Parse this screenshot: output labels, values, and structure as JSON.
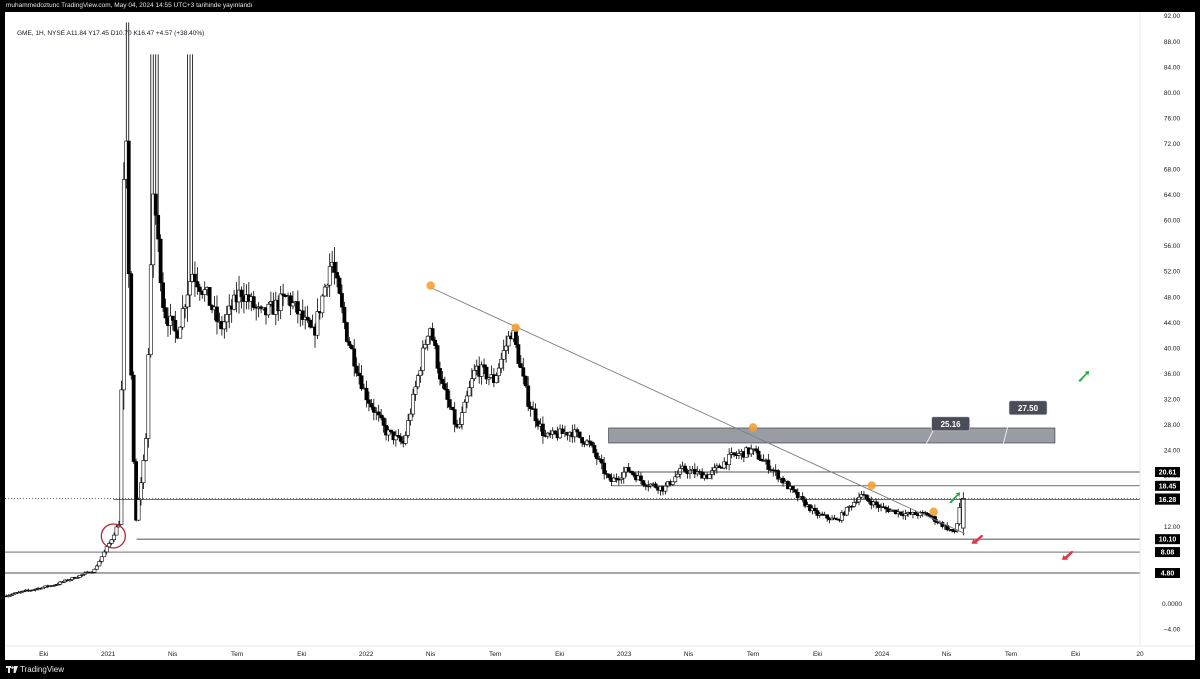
{
  "header": {
    "publisher_line": "muhammedoztunc TradingView.com, May 04, 2024 14:55 UTC+3 tarihinde yayınlandı"
  },
  "legend": {
    "text": "GME, 1H, NYSE  A11.84  Y17.45  D10.70  K16.47  +4.57 (+38.40%)"
  },
  "footer": {
    "brand": "TradingView"
  },
  "colors": {
    "background": "#ffffff",
    "candle": "#000000",
    "trendline": "#787b86",
    "zone_fill": "#787b86",
    "pivot_marker": "#f6a032",
    "arrow_green": "#22ab3b",
    "arrow_red": "#e5323e",
    "circle": "#b22833",
    "tag_bg": "#000000"
  },
  "chart_data": {
    "type": "candlestick",
    "title": "",
    "symbol": "GME",
    "timeframe": "1H",
    "exchange": "NYSE",
    "ohlc": {
      "open": 11.84,
      "high": 17.45,
      "low": 10.7,
      "close": 16.47,
      "change": 4.57,
      "change_pct": 38.4
    },
    "y_axis": {
      "range": [
        -6,
        92
      ],
      "ticks": [
        "92.00",
        "88.00",
        "84.00",
        "80.00",
        "76.00",
        "72.00",
        "68.00",
        "64.00",
        "60.00",
        "56.00",
        "52.00",
        "48.00",
        "44.00",
        "40.00",
        "36.00",
        "32.00",
        "28.00",
        "24.00",
        "20.00",
        "12.00",
        "0.0000",
        "−4.00"
      ],
      "tick_values": [
        92,
        88,
        84,
        80,
        76,
        72,
        68,
        64,
        60,
        56,
        52,
        48,
        44,
        40,
        36,
        32,
        28,
        24,
        20,
        12,
        0,
        -4
      ]
    },
    "x_axis": {
      "range": [
        2020.6,
        2025.0
      ],
      "labels": [
        {
          "t": 2020.75,
          "label": "Eki"
        },
        {
          "t": 2021.0,
          "label": "2021"
        },
        {
          "t": 2021.25,
          "label": "Nis"
        },
        {
          "t": 2021.5,
          "label": "Tem"
        },
        {
          "t": 2021.75,
          "label": "Eki"
        },
        {
          "t": 2022.0,
          "label": "2022"
        },
        {
          "t": 2022.25,
          "label": "Nis"
        },
        {
          "t": 2022.5,
          "label": "Tem"
        },
        {
          "t": 2022.75,
          "label": "Eki"
        },
        {
          "t": 2023.0,
          "label": "2023"
        },
        {
          "t": 2023.25,
          "label": "Nis"
        },
        {
          "t": 2023.5,
          "label": "Tem"
        },
        {
          "t": 2023.75,
          "label": "Eki"
        },
        {
          "t": 2024.0,
          "label": "2024"
        },
        {
          "t": 2024.25,
          "label": "Nis"
        },
        {
          "t": 2024.5,
          "label": "Tem"
        },
        {
          "t": 2024.75,
          "label": "Eki"
        },
        {
          "t": 2025.0,
          "label": "20"
        }
      ]
    },
    "price_anchors": [
      {
        "t": 2020.6,
        "p": 1.2
      },
      {
        "t": 2020.8,
        "p": 3.0
      },
      {
        "t": 2020.95,
        "p": 5.2
      },
      {
        "t": 2021.01,
        "p": 9.5
      },
      {
        "t": 2021.05,
        "p": 13
      },
      {
        "t": 2021.07,
        "p": 80
      },
      {
        "t": 2021.09,
        "p": 42
      },
      {
        "t": 2021.11,
        "p": 12
      },
      {
        "t": 2021.15,
        "p": 25
      },
      {
        "t": 2021.18,
        "p": 65
      },
      {
        "t": 2021.22,
        "p": 46
      },
      {
        "t": 2021.27,
        "p": 42
      },
      {
        "t": 2021.33,
        "p": 52
      },
      {
        "t": 2021.39,
        "p": 48
      },
      {
        "t": 2021.44,
        "p": 43
      },
      {
        "t": 2021.52,
        "p": 49
      },
      {
        "t": 2021.6,
        "p": 45
      },
      {
        "t": 2021.7,
        "p": 48
      },
      {
        "t": 2021.8,
        "p": 42
      },
      {
        "t": 2021.87,
        "p": 54
      },
      {
        "t": 2021.93,
        "p": 42
      },
      {
        "t": 2022.0,
        "p": 33
      },
      {
        "t": 2022.08,
        "p": 27
      },
      {
        "t": 2022.15,
        "p": 25
      },
      {
        "t": 2022.25,
        "p": 44
      },
      {
        "t": 2022.3,
        "p": 34
      },
      {
        "t": 2022.36,
        "p": 27
      },
      {
        "t": 2022.43,
        "p": 37
      },
      {
        "t": 2022.5,
        "p": 35
      },
      {
        "t": 2022.57,
        "p": 43
      },
      {
        "t": 2022.63,
        "p": 32
      },
      {
        "t": 2022.7,
        "p": 26
      },
      {
        "t": 2022.8,
        "p": 27
      },
      {
        "t": 2022.87,
        "p": 25
      },
      {
        "t": 2022.95,
        "p": 19
      },
      {
        "t": 2023.02,
        "p": 21
      },
      {
        "t": 2023.08,
        "p": 19
      },
      {
        "t": 2023.16,
        "p": 18
      },
      {
        "t": 2023.23,
        "p": 21
      },
      {
        "t": 2023.33,
        "p": 20
      },
      {
        "t": 2023.42,
        "p": 23
      },
      {
        "t": 2023.5,
        "p": 24
      },
      {
        "t": 2023.58,
        "p": 21
      },
      {
        "t": 2023.67,
        "p": 17
      },
      {
        "t": 2023.75,
        "p": 14
      },
      {
        "t": 2023.83,
        "p": 13
      },
      {
        "t": 2023.92,
        "p": 17
      },
      {
        "t": 2024.0,
        "p": 15
      },
      {
        "t": 2024.1,
        "p": 14
      },
      {
        "t": 2024.18,
        "p": 14
      },
      {
        "t": 2024.25,
        "p": 12
      },
      {
        "t": 2024.29,
        "p": 11
      },
      {
        "t": 2024.31,
        "p": 16.5
      }
    ],
    "horizontal_levels": [
      {
        "price": 20.61,
        "label": "20.61",
        "t_start": 2023.0
      },
      {
        "price": 18.45,
        "label": "18.45",
        "t_start": 2022.95
      },
      {
        "price": 16.47,
        "label": "16.47",
        "t_start": 2020.6,
        "dotted": true
      },
      {
        "price": 16.28,
        "label": "16.28",
        "t_start": 2021.02
      },
      {
        "price": 10.1,
        "label": "10.10",
        "t_start": 2021.11
      },
      {
        "price": 8.08,
        "label": "8.08",
        "t_start": 2020.6
      },
      {
        "price": 4.8,
        "label": "4.80",
        "t_start": 2020.6
      }
    ],
    "resistance_zone": {
      "t_start": 2022.94,
      "t_end": 2024.67,
      "p_low": 25.16,
      "p_high": 27.5
    },
    "zone_callouts": [
      {
        "value": "25.16",
        "t": 2024.2,
        "p": 28.0
      },
      {
        "value": "27.50",
        "t": 2024.5,
        "p": 30.5
      }
    ],
    "trendline": {
      "t1": 2022.25,
      "p1": 49.5,
      "t2": 2024.32,
      "p2": 11.0
    },
    "pivot_markers": [
      {
        "t": 2022.25,
        "p": 49.8
      },
      {
        "t": 2022.58,
        "p": 43.2
      },
      {
        "t": 2023.5,
        "p": 27.6
      },
      {
        "t": 2023.96,
        "p": 18.5
      },
      {
        "t": 2024.2,
        "p": 14.4
      }
    ],
    "circle_marker": {
      "t": 2021.02,
      "p": 10.6
    },
    "arrows": [
      {
        "direction": "up",
        "color": "green",
        "t": 2024.28,
        "p": 16.5
      },
      {
        "direction": "up",
        "color": "green",
        "t": 2024.78,
        "p": 35.5
      },
      {
        "direction": "down",
        "color": "red",
        "t": 2024.37,
        "p": 10.0
      },
      {
        "direction": "down",
        "color": "red",
        "t": 2024.72,
        "p": 7.5
      }
    ]
  }
}
